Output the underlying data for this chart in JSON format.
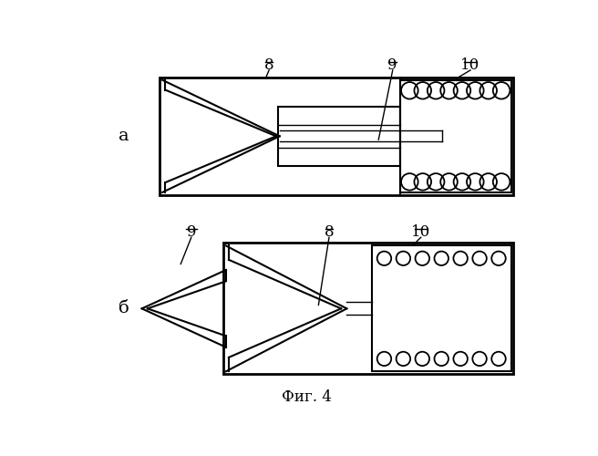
{
  "bg_color": "#ffffff",
  "line_color": "#000000",
  "lw_main": 2.0,
  "lw_inner": 1.5,
  "lw_thin": 1.0,
  "fig_a_label": "а",
  "fig_b_label": "б",
  "fig_caption": "Фиг. 4",
  "label_8a": "8",
  "label_9a": "9",
  "label_10a": "10",
  "label_9b": "9",
  "label_8b": "8",
  "label_10b": "10"
}
